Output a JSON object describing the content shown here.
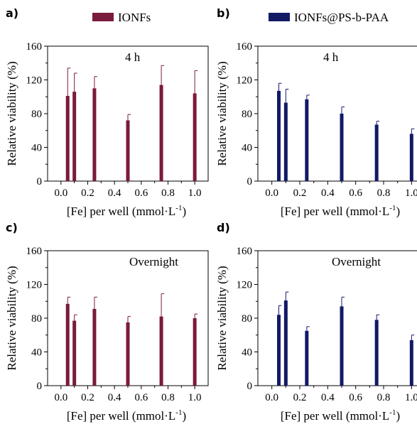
{
  "colors": {
    "ionf": "#7a1a3c",
    "coated": "#121a66"
  },
  "chart_data": [
    {
      "panel": "a)",
      "type": "bar",
      "legend": "IONFs",
      "annotation": "4 h",
      "x": [
        0.05,
        0.1,
        0.25,
        0.5,
        0.75,
        1.0
      ],
      "values": [
        101,
        106,
        110,
        72,
        114,
        104
      ],
      "errors": [
        33,
        22,
        14,
        7,
        23,
        27
      ],
      "xlim": [
        -0.1,
        1.1
      ],
      "ylim": [
        0,
        160
      ],
      "xticks": [
        "0.0",
        "0.2",
        "0.4",
        "0.6",
        "0.8",
        "1.0"
      ],
      "yticks": [
        "0",
        "40",
        "80",
        "120",
        "160"
      ],
      "xlabel": "[Fe] per well (mmol·L",
      "xlabel_sup": "-1",
      "xlabel_end": ")",
      "ylabel": "Relative viability (%)",
      "color": "ionf"
    },
    {
      "panel": "b)",
      "type": "bar",
      "legend": "IONFs@PS-b-PAA",
      "annotation": "4 h",
      "x": [
        0.05,
        0.1,
        0.25,
        0.5,
        0.75,
        1.0
      ],
      "values": [
        107,
        93,
        97,
        80,
        67,
        56
      ],
      "errors": [
        9,
        16,
        5,
        8,
        4,
        6
      ],
      "xlim": [
        -0.1,
        1.1
      ],
      "ylim": [
        0,
        160
      ],
      "xticks": [
        "0.0",
        "0.2",
        "0.4",
        "0.6",
        "0.8",
        "1.0"
      ],
      "yticks": [
        "0",
        "40",
        "80",
        "120",
        "160"
      ],
      "xlabel": "[Fe] per well (mmol·L",
      "xlabel_sup": "-1",
      "xlabel_end": ")",
      "ylabel": "Relative viability (%)",
      "color": "coated"
    },
    {
      "panel": "c)",
      "type": "bar",
      "legend": "",
      "annotation": "Overnight",
      "x": [
        0.05,
        0.1,
        0.25,
        0.5,
        0.75,
        1.0
      ],
      "values": [
        97,
        77,
        91,
        75,
        82,
        80
      ],
      "errors": [
        8,
        7,
        14,
        7,
        27,
        5
      ],
      "xlim": [
        -0.1,
        1.1
      ],
      "ylim": [
        0,
        160
      ],
      "xticks": [
        "0.0",
        "0.2",
        "0.4",
        "0.6",
        "0.8",
        "1.0"
      ],
      "yticks": [
        "0",
        "40",
        "80",
        "120",
        "160"
      ],
      "xlabel": "[Fe] per well (mmol·L",
      "xlabel_sup": "-1",
      "xlabel_end": ")",
      "ylabel": "Relative viability (%)",
      "color": "ionf"
    },
    {
      "panel": "d)",
      "type": "bar",
      "legend": "",
      "annotation": "Overnight",
      "x": [
        0.05,
        0.1,
        0.25,
        0.5,
        0.75,
        1.0
      ],
      "values": [
        84,
        101,
        65,
        94,
        78,
        54
      ],
      "errors": [
        11,
        10,
        5,
        11,
        6,
        6
      ],
      "xlim": [
        -0.1,
        1.1
      ],
      "ylim": [
        0,
        160
      ],
      "xticks": [
        "0.0",
        "0.2",
        "0.4",
        "0.6",
        "0.8",
        "1.0"
      ],
      "yticks": [
        "0",
        "40",
        "80",
        "120",
        "160"
      ],
      "xlabel": "[Fe] per well (mmol·L",
      "xlabel_sup": "-1",
      "xlabel_end": ")",
      "ylabel": "Relative viability (%)",
      "color": "coated"
    }
  ]
}
